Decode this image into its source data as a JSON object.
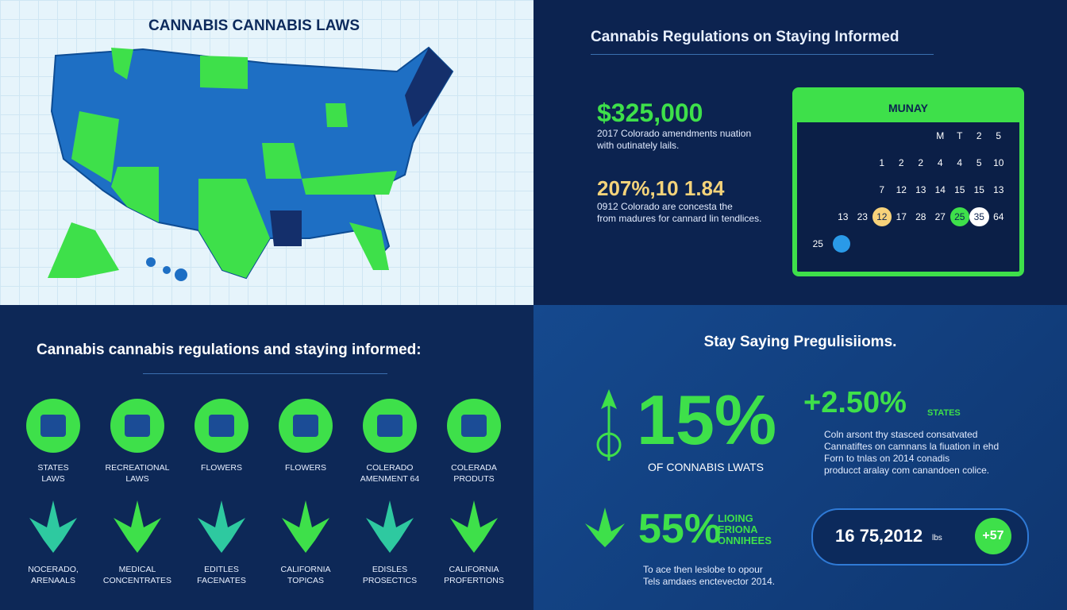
{
  "map_panel": {
    "title": "CANNABIS CANNABIS LAWS"
  },
  "stats_panel": {
    "title": "Cannabis Regulations on Staying Informed",
    "stats": [
      {
        "value": "$325,000",
        "lines": [
          "2017 Colorado amendments nuation",
          "with outinately lails."
        ]
      },
      {
        "value": "207%,10 1.84",
        "lines": [
          "0912 Colorado are concesta the",
          "from madures for cannard lin tendlices."
        ]
      }
    ],
    "calendar": {
      "title": "MUNAY",
      "rows": [
        [
          "M",
          "T",
          "2",
          "5"
        ],
        [
          "1",
          "2",
          "2",
          "4",
          "4",
          "5",
          "10"
        ],
        [
          "7",
          "12",
          "13",
          "14",
          "15",
          "15",
          "13"
        ],
        [
          "13",
          "23",
          "12",
          "17",
          "28",
          "27",
          "25",
          "35",
          "64"
        ],
        [
          "25"
        ]
      ]
    }
  },
  "icons_panel": {
    "title": "Cannabis cannabis regulations and staying informed:",
    "items": [
      [
        "STATES",
        "LAWS"
      ],
      [
        "RECREATIONAL",
        "LAWS"
      ],
      [
        "FLOWERS"
      ],
      [
        "FLOWERS"
      ],
      [
        "COLERADO",
        "AMENMENT 64"
      ],
      [
        "COLERADA",
        "PRODUTS"
      ],
      [
        "NOCERADO,",
        "ARENAALS"
      ],
      [
        "MEDICAL",
        "CONCENTRATES"
      ],
      [
        "EDITLES",
        "FACENATES"
      ],
      [
        "CALIFORNIA",
        "TOPICAS"
      ],
      [
        "EDISLES",
        "PROSECTICS"
      ],
      [
        "CALIFORNIA",
        "PROFERTIONS"
      ]
    ]
  },
  "summary_panel": {
    "title": "Stay Saying Pregulisiioms.",
    "big_stat": {
      "value": "15%",
      "caption": "OF CONNABIS LWATS"
    },
    "growth": {
      "value": "+2.50%",
      "unit": "STATES"
    },
    "paragraph": [
      "Coln arsont thy stasced consatvated",
      "Cannatiftes on camnans la fiuation in ehd",
      "Forn to tnlas on 2014 conadis",
      "producct aralay com canandoen colice."
    ],
    "second_stat": {
      "value": "55%",
      "lines": [
        "LIOING",
        "ERIONA",
        "ONNIHEES"
      ]
    },
    "footnote": [
      "To ace then leslobe to opour",
      "Tels amdaes enctevector 2014."
    ],
    "pill": {
      "value": "16 75,2012",
      "unit": "lbs",
      "badge": "+57"
    }
  }
}
